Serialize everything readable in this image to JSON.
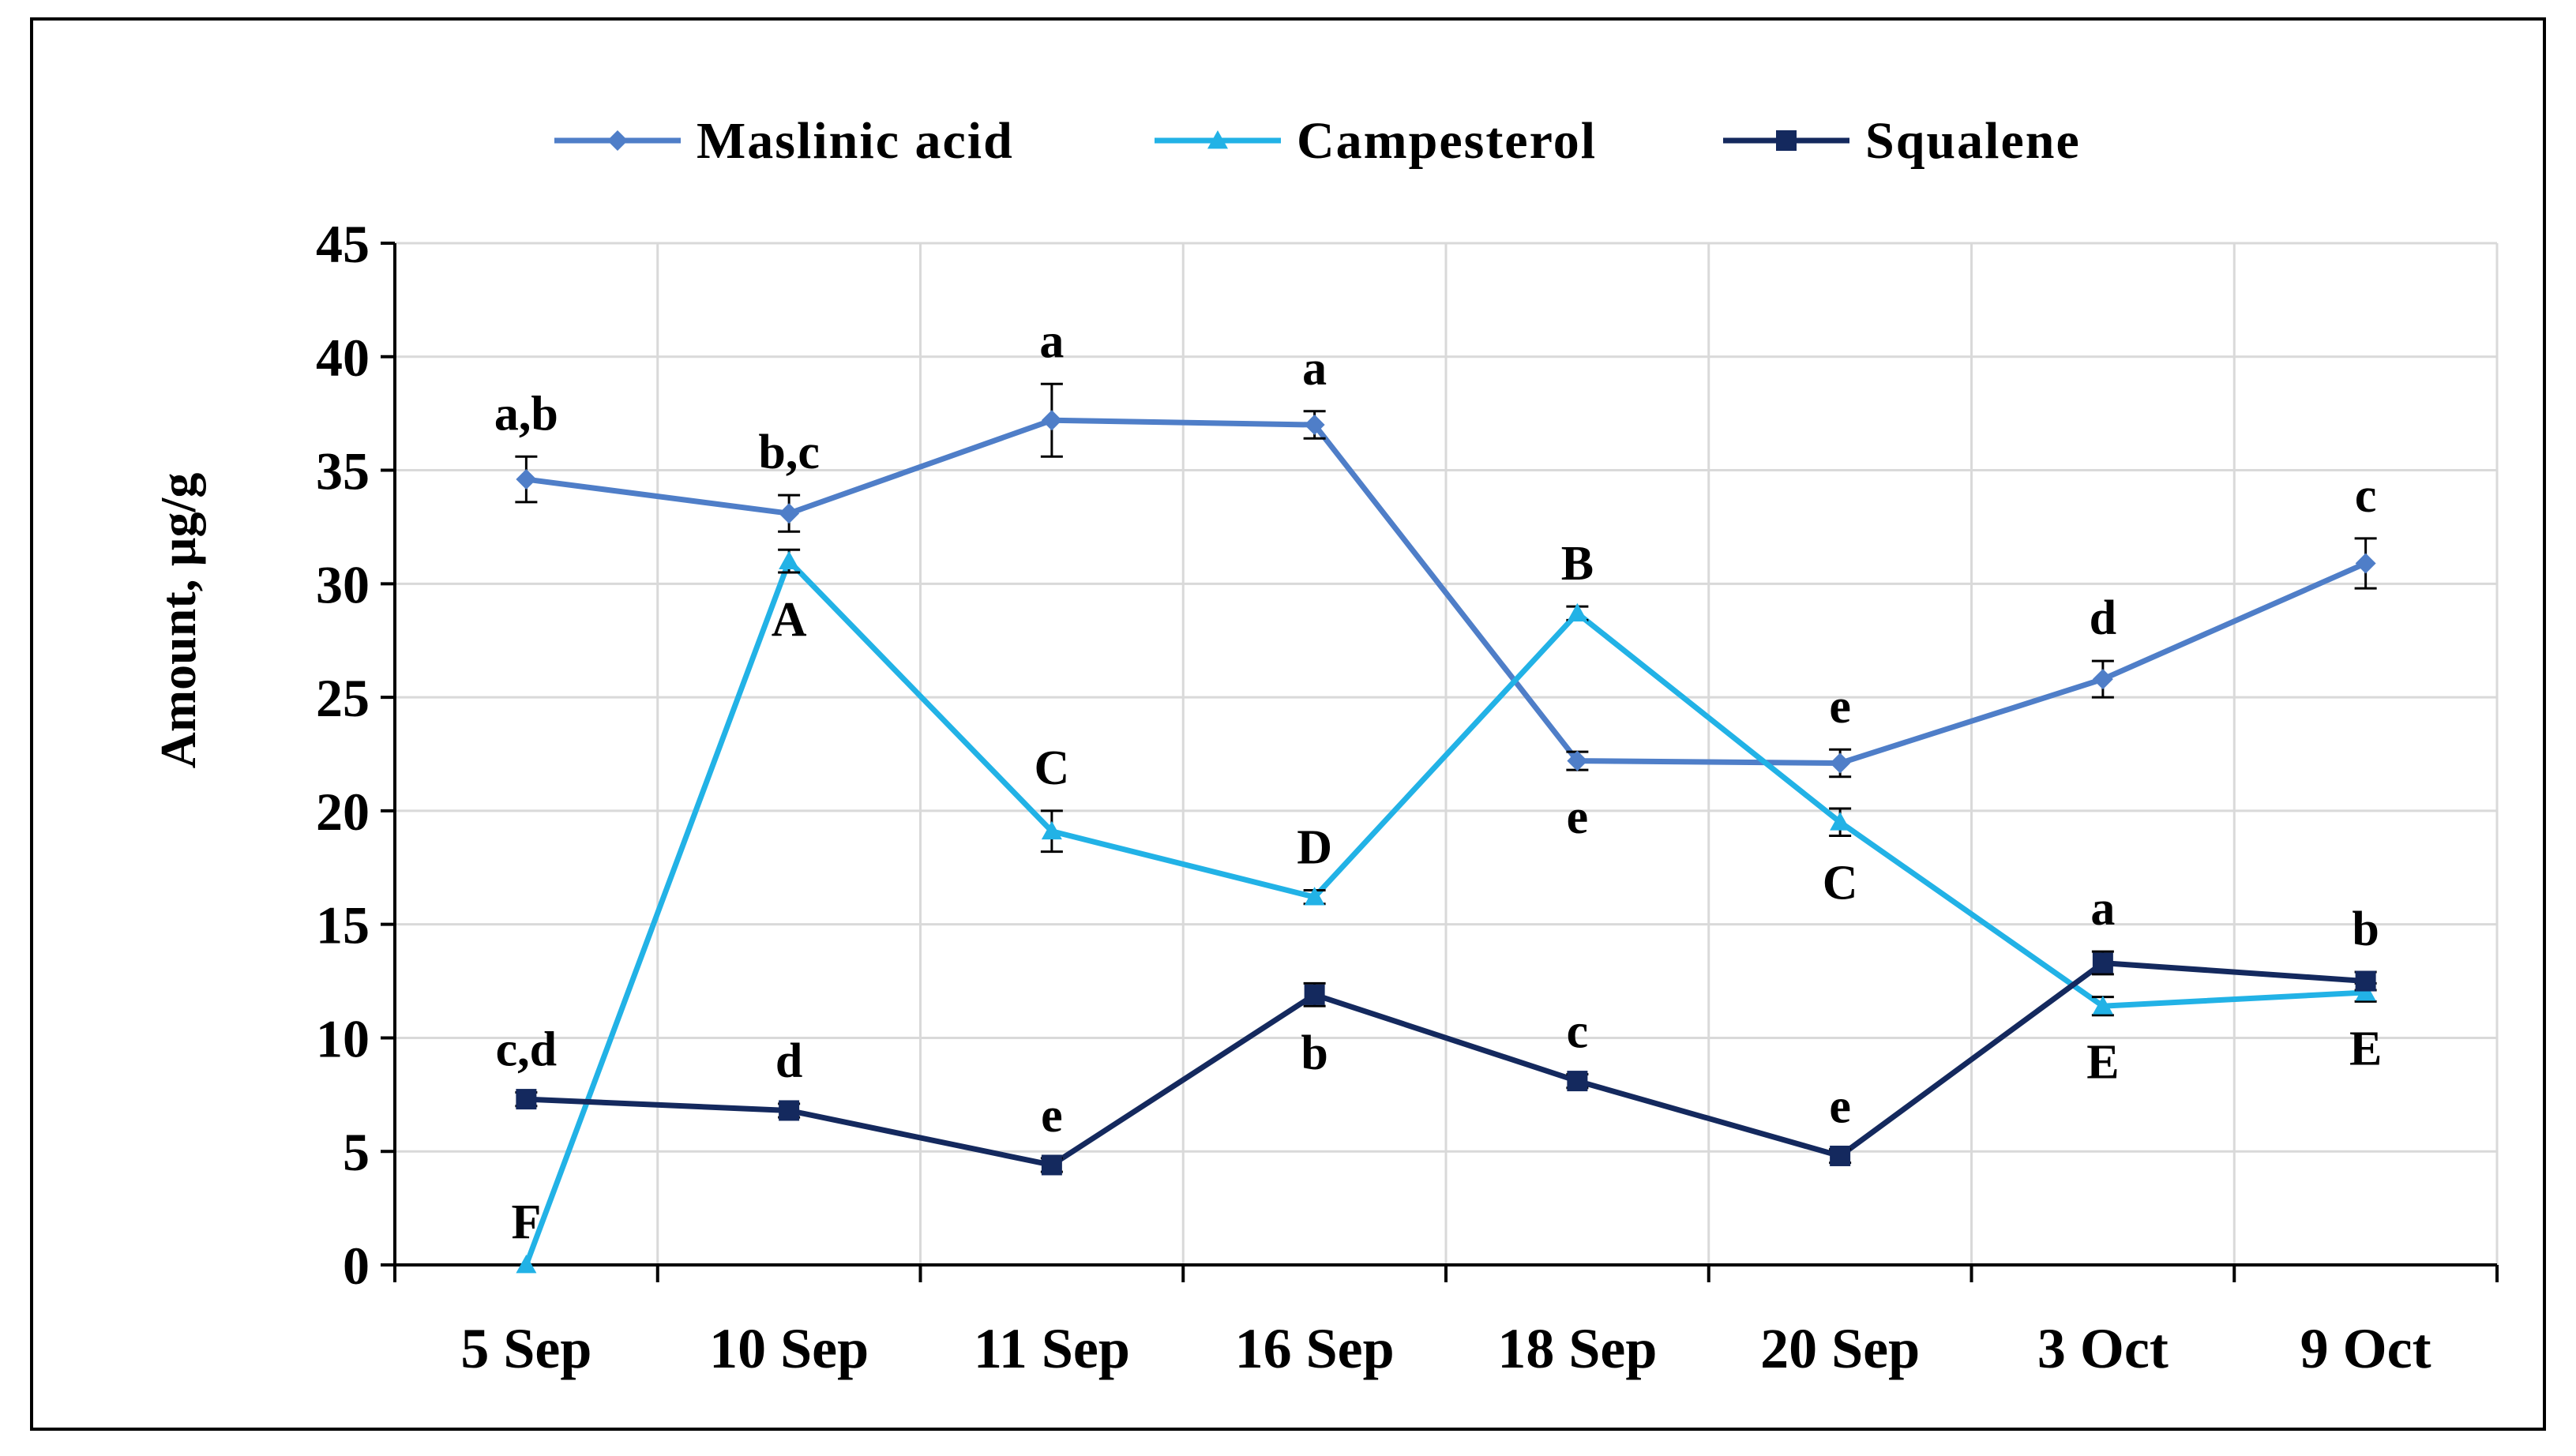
{
  "chart_data": {
    "type": "line",
    "ylabel": "Amount,  µg/g",
    "xlabel": "",
    "ylim": [
      0,
      45
    ],
    "yticks": [
      0,
      5,
      10,
      15,
      20,
      25,
      30,
      35,
      40,
      45
    ],
    "grid": true,
    "legend_position": "top",
    "categories": [
      "5 Sep",
      "10 Sep",
      "11 Sep",
      "16 Sep",
      "18 Sep",
      "20 Sep",
      "3 Oct",
      "9 Oct"
    ],
    "series": [
      {
        "name": "Maslinic acid",
        "color": "#4F7EC8",
        "marker": "diamond",
        "values": [
          34.6,
          33.1,
          37.2,
          37.0,
          22.2,
          22.1,
          25.8,
          30.9
        ],
        "errors": [
          1.0,
          0.8,
          1.6,
          0.6,
          0.4,
          0.6,
          0.8,
          1.1
        ],
        "labels": [
          "a,b",
          "b,c",
          "a",
          "a",
          "e",
          "e",
          "d",
          "c"
        ],
        "label_side": [
          "above",
          "above",
          "above",
          "above",
          "below",
          "above",
          "above",
          "above"
        ]
      },
      {
        "name": "Campesterol",
        "color": "#22B2E6",
        "marker": "triangle",
        "values": [
          0.0,
          31.0,
          19.1,
          16.2,
          28.7,
          19.5,
          11.4,
          12.0
        ],
        "errors": [
          0.0,
          0.5,
          0.9,
          0.3,
          0.3,
          0.6,
          0.4,
          0.4
        ],
        "labels": [
          "F",
          "A",
          "C",
          "D",
          "B",
          "C",
          "E",
          "E"
        ],
        "label_side": [
          "above",
          "below",
          "above",
          "above",
          "above",
          "below",
          "below",
          "below"
        ]
      },
      {
        "name": "Squalene",
        "color": "#14295E",
        "marker": "square",
        "values": [
          7.3,
          6.8,
          4.4,
          11.9,
          8.1,
          4.8,
          13.3,
          12.5
        ],
        "errors": [
          0.3,
          0.3,
          0.3,
          0.5,
          0.3,
          0.3,
          0.5,
          0.4
        ],
        "labels": [
          "c,d",
          "d",
          "e",
          "b",
          "c",
          "e",
          "a",
          "b"
        ],
        "label_side": [
          "above",
          "above",
          "above",
          "below",
          "above",
          "above",
          "above",
          "above"
        ]
      }
    ]
  }
}
